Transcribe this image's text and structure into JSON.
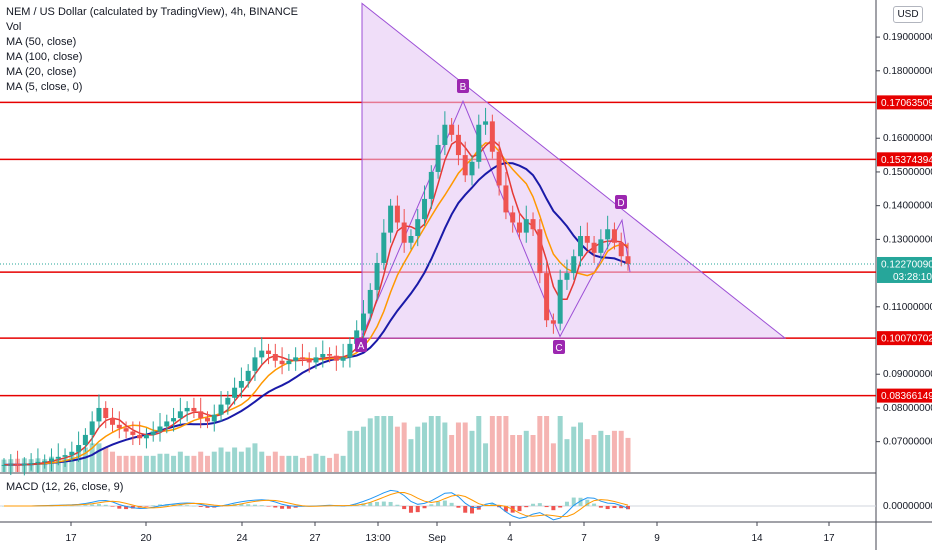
{
  "legend": {
    "title": "NEM / US Dollar (calculated by TradingView), 4h, BINANCE",
    "items": [
      "Vol",
      "MA (50, close)",
      "MA (100, close)",
      "MA (20, close)",
      "MA (5, close, 0)"
    ]
  },
  "macd_label": "MACD (12, 26, close, 9)",
  "currency": "USD",
  "colors": {
    "up": "#26a69a",
    "down": "#ef5350",
    "triangle_fill": "#e6c8f5",
    "triangle_line": "#9c4fd6",
    "ma_red": "#e53935",
    "ma_orange": "#ff9800",
    "ma_blue": "#1a1aa8",
    "hline": "#e60000",
    "macd_line": "#2196f3",
    "signal_line": "#ff9800"
  },
  "chart_data": {
    "type": "candlestick",
    "y_axis": {
      "range": [
        0.061,
        0.201
      ],
      "ticks": [
        "0.19000000",
        "0.18000000",
        "0.16000000",
        "0.15000000",
        "0.14000000",
        "0.13000000",
        "0.11000000",
        "0.09000000",
        "0.08000000",
        "0.07000000"
      ],
      "tick_values": [
        0.19,
        0.18,
        0.16,
        0.15,
        0.14,
        0.13,
        0.11,
        0.09,
        0.08,
        0.07
      ]
    },
    "x_axis": {
      "ticks": [
        "17",
        "20",
        "24",
        "27",
        "13:00",
        "Sep",
        "4",
        "7",
        "9",
        "14",
        "17"
      ]
    },
    "horizontal_levels": [
      {
        "label": "0.17063509",
        "value": 0.17063509
      },
      {
        "label": "0.15374394",
        "value": 0.15374394
      },
      {
        "label": "0.12027781",
        "value": 0.12027781
      },
      {
        "label": "0.10070702",
        "value": 0.10070702
      },
      {
        "label": "0.08366149",
        "value": 0.08366149
      }
    ],
    "current_price": {
      "label": "0.12270090",
      "value": 0.1227009,
      "countdown": "03:28:10"
    },
    "pattern_points": [
      {
        "label": "A",
        "value": 0.0999
      },
      {
        "label": "B",
        "value": 0.171
      },
      {
        "label": "C",
        "value": 0.1012
      },
      {
        "label": "D",
        "value": 0.1357
      }
    ],
    "macd_axis_tick": "0.00000000",
    "closes": [
      0.0631,
      0.0633,
      0.063,
      0.0634,
      0.0636,
      0.064,
      0.0642,
      0.065,
      0.0655,
      0.066,
      0.067,
      0.069,
      0.072,
      0.076,
      0.08,
      0.077,
      0.075,
      0.074,
      0.073,
      0.072,
      0.071,
      0.072,
      0.073,
      0.0745,
      0.076,
      0.077,
      0.079,
      0.08,
      0.079,
      0.077,
      0.076,
      0.078,
      0.081,
      0.083,
      0.086,
      0.088,
      0.091,
      0.095,
      0.097,
      0.096,
      0.094,
      0.093,
      0.094,
      0.095,
      0.0945,
      0.0935,
      0.095,
      0.096,
      0.0955,
      0.094,
      0.095,
      0.099,
      0.103,
      0.108,
      0.115,
      0.123,
      0.132,
      0.14,
      0.135,
      0.129,
      0.131,
      0.136,
      0.142,
      0.15,
      0.158,
      0.164,
      0.161,
      0.155,
      0.149,
      0.153,
      0.164,
      0.165,
      0.156,
      0.146,
      0.138,
      0.135,
      0.132,
      0.136,
      0.133,
      0.12,
      0.106,
      0.105,
      0.118,
      0.12,
      0.125,
      0.131,
      0.129,
      0.126,
      0.13,
      0.133,
      0.129,
      0.125,
      0.1227
    ],
    "opens": [
      0.063,
      0.0631,
      0.0633,
      0.063,
      0.0634,
      0.0636,
      0.064,
      0.0642,
      0.065,
      0.0655,
      0.066,
      0.067,
      0.069,
      0.072,
      0.076,
      0.08,
      0.077,
      0.075,
      0.074,
      0.073,
      0.072,
      0.071,
      0.072,
      0.073,
      0.0745,
      0.076,
      0.077,
      0.079,
      0.08,
      0.079,
      0.077,
      0.076,
      0.078,
      0.081,
      0.083,
      0.086,
      0.088,
      0.091,
      0.095,
      0.097,
      0.096,
      0.094,
      0.093,
      0.094,
      0.095,
      0.0945,
      0.0935,
      0.095,
      0.096,
      0.0955,
      0.094,
      0.095,
      0.099,
      0.103,
      0.108,
      0.115,
      0.123,
      0.132,
      0.14,
      0.135,
      0.129,
      0.131,
      0.136,
      0.142,
      0.15,
      0.158,
      0.164,
      0.161,
      0.155,
      0.149,
      0.153,
      0.164,
      0.165,
      0.156,
      0.146,
      0.138,
      0.135,
      0.132,
      0.136,
      0.133,
      0.12,
      0.106,
      0.105,
      0.118,
      0.12,
      0.125,
      0.131,
      0.129,
      0.126,
      0.13,
      0.133,
      0.129,
      0.125
    ]
  }
}
